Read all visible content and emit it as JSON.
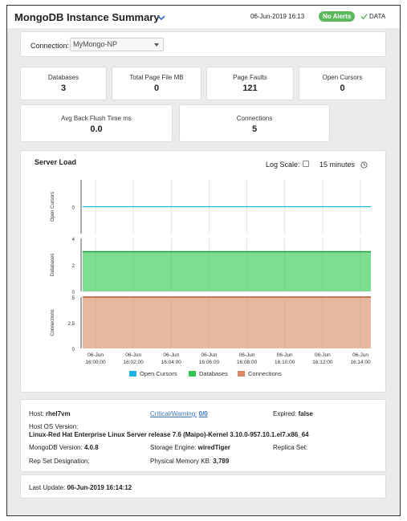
{
  "header": {
    "title": "MongoDB Instance Summary",
    "timestamp": "06-Jun-2019 16:13",
    "alert_badge": "No Alerts",
    "data_label": "DATA",
    "badge_color": "#5cb85c"
  },
  "connection": {
    "label": "Connection:",
    "value": "MyMongo-NP"
  },
  "kpis": [
    {
      "label": "Databases",
      "value": "3"
    },
    {
      "label": "Total Page File MB",
      "value": "0"
    },
    {
      "label": "Page Faults",
      "value": "121"
    },
    {
      "label": "Open Cursors",
      "value": "0"
    },
    {
      "label": "Avg Back Flush Time ms",
      "value": "0.0"
    },
    {
      "label": "Connections",
      "value": "5"
    }
  ],
  "server_load": {
    "title": "Server Load",
    "log_scale_label": "Log Scale:",
    "log_scale_checked": false,
    "time_range": "15 minutes"
  },
  "chart_data": {
    "type": "area",
    "x": [
      "16:00:00",
      "16:02:00",
      "16:04:00",
      "16:06:00",
      "16:08:00",
      "16:10:00",
      "16:12:00",
      "16:14:00"
    ],
    "x_date": "06-Jun",
    "panels": [
      {
        "ylabel": "Open Cursors",
        "ticks": [
          "0"
        ],
        "ylim": [
          -1,
          1
        ],
        "color": "#1ab3e6",
        "fill": false,
        "value": 0
      },
      {
        "ylabel": "Databases",
        "ticks": [
          "4",
          "2",
          "0"
        ],
        "ylim": [
          0,
          4
        ],
        "color": "#2dc84d",
        "fill": true,
        "value": 3
      },
      {
        "ylabel": "Connections",
        "ticks": [
          "5",
          "2.5",
          "0"
        ],
        "ylim": [
          0,
          5
        ],
        "color": "#d88a63",
        "fill": true,
        "value": 5
      }
    ],
    "legend": [
      {
        "name": "Open Cursors",
        "color": "#1ab3e6"
      },
      {
        "name": "Databases",
        "color": "#2dc84d"
      },
      {
        "name": "Connections",
        "color": "#d88a63"
      }
    ]
  },
  "info": {
    "host_label": "Host:",
    "host_value": "rhel7vm",
    "critical_label": "Critical/Warning:",
    "critical_value": "0/0",
    "expired_label": "Expired:",
    "expired_value": "false",
    "os_label": "Host OS Version:",
    "os_value": "Linux-Red Hat Enterprise Linux Server release 7.6 (Maipo)-Kernel 3.10.0-957.10.1.el7.x86_64",
    "mongo_label": "MongoDB Version:",
    "mongo_value": "4.0.8",
    "engine_label": "Storage Engine:",
    "engine_value": "wiredTiger",
    "replica_label": "Replica Set:",
    "repset_label": "Rep Set Designation:",
    "memory_label": "Physical Memory KB:",
    "memory_value": "3,789"
  },
  "footer": {
    "update_label": "Last Update:",
    "update_value": "06-Jun-2019 16:14:12"
  }
}
